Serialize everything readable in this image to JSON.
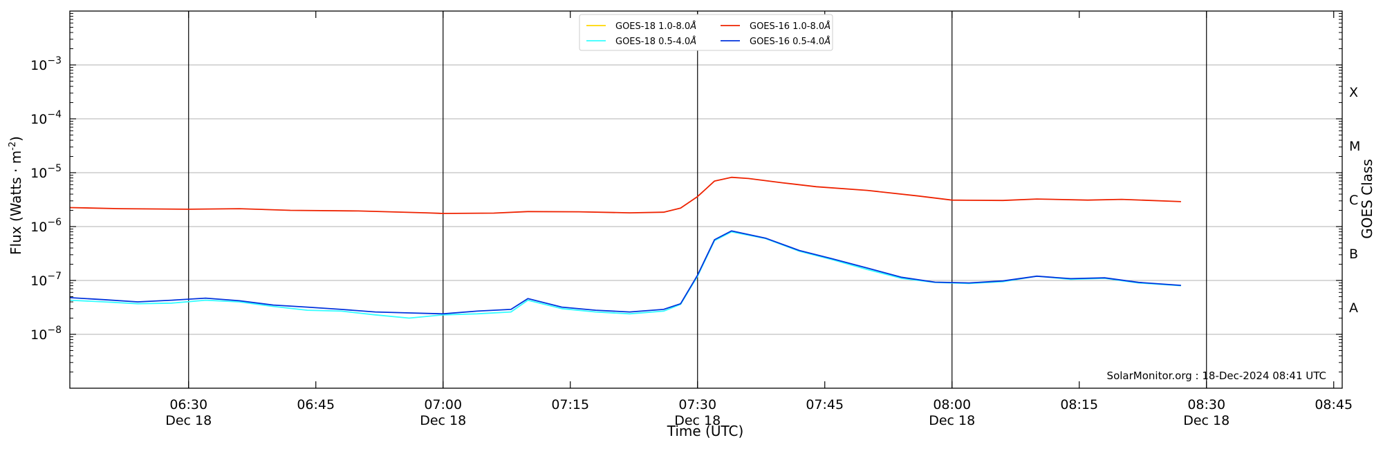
{
  "chart_data": {
    "type": "line",
    "title": "",
    "xlabel": "Time (UTC)",
    "ylabel": "Flux (Watts · m",
    "ylabel_sup": "-2",
    "ylabel_close": ")",
    "y2label": "GOES Class",
    "yscale": "log",
    "ylim": [
      1e-09,
      0.01
    ],
    "xlim": [
      "06:16",
      "08:46"
    ],
    "grid": "horizontal",
    "legend_position": "top-center",
    "y_ticks": [
      {
        "base": "10",
        "exp": "−8",
        "value": 1e-08
      },
      {
        "base": "10",
        "exp": "−7",
        "value": 1e-07
      },
      {
        "base": "10",
        "exp": "−6",
        "value": 1e-06
      },
      {
        "base": "10",
        "exp": "−5",
        "value": 1e-05
      },
      {
        "base": "10",
        "exp": "−4",
        "value": 0.0001
      },
      {
        "base": "10",
        "exp": "−3",
        "value": 0.001
      }
    ],
    "x_ticks": [
      {
        "time": "06:30",
        "label": "06:30",
        "date": "Dec 18"
      },
      {
        "time": "06:45",
        "label": "06:45",
        "date": ""
      },
      {
        "time": "07:00",
        "label": "07:00",
        "date": "Dec 18"
      },
      {
        "time": "07:15",
        "label": "07:15",
        "date": ""
      },
      {
        "time": "07:30",
        "label": "07:30",
        "date": "Dec 18"
      },
      {
        "time": "07:45",
        "label": "07:45",
        "date": ""
      },
      {
        "time": "08:00",
        "label": "08:00",
        "date": "Dec 18"
      },
      {
        "time": "08:15",
        "label": "08:15",
        "date": ""
      },
      {
        "time": "08:30",
        "label": "08:30",
        "date": "Dec 18"
      },
      {
        "time": "08:45",
        "label": "08:45",
        "date": ""
      }
    ],
    "vertical_lines": [
      "06:30",
      "07:00",
      "07:30",
      "08:00",
      "08:30"
    ],
    "goes_classes": [
      {
        "label": "A",
        "value": 3.16e-08
      },
      {
        "label": "B",
        "value": 3.16e-07
      },
      {
        "label": "C",
        "value": 3.16e-06
      },
      {
        "label": "M",
        "value": 3.16e-05
      },
      {
        "label": "X",
        "value": 0.000316
      }
    ],
    "series": [
      {
        "name": "GOES-18 1.0-8.0",
        "name_suffix": "Å",
        "color": "#ffd700",
        "data": []
      },
      {
        "name": "GOES-18 0.5-4.0",
        "name_suffix": "Å",
        "color": "#33ffff",
        "data": [
          [
            "06:16",
            4.3e-08
          ],
          [
            "06:20",
            4e-08
          ],
          [
            "06:24",
            3.7e-08
          ],
          [
            "06:28",
            3.8e-08
          ],
          [
            "06:32",
            4.3e-08
          ],
          [
            "06:36",
            4e-08
          ],
          [
            "06:40",
            3.3e-08
          ],
          [
            "06:44",
            2.8e-08
          ],
          [
            "06:48",
            2.7e-08
          ],
          [
            "06:52",
            2.3e-08
          ],
          [
            "06:56",
            2e-08
          ],
          [
            "07:00",
            2.3e-08
          ],
          [
            "07:04",
            2.4e-08
          ],
          [
            "07:08",
            2.6e-08
          ],
          [
            "07:10",
            4.3e-08
          ],
          [
            "07:14",
            3e-08
          ],
          [
            "07:18",
            2.6e-08
          ],
          [
            "07:22",
            2.4e-08
          ],
          [
            "07:26",
            2.7e-08
          ],
          [
            "07:28",
            3.6e-08
          ],
          [
            "07:30",
            1.2e-07
          ],
          [
            "07:32",
            5.5e-07
          ],
          [
            "07:34",
            8e-07
          ],
          [
            "07:38",
            6e-07
          ],
          [
            "07:42",
            3.5e-07
          ],
          [
            "07:46",
            2.4e-07
          ],
          [
            "07:50",
            1.6e-07
          ],
          [
            "07:54",
            1.1e-07
          ],
          [
            "07:58",
            9.2e-08
          ],
          [
            "08:02",
            8.8e-08
          ],
          [
            "08:06",
            9.5e-08
          ],
          [
            "08:10",
            1.2e-07
          ],
          [
            "08:14",
            1.05e-07
          ],
          [
            "08:18",
            1.1e-07
          ],
          [
            "08:22",
            9e-08
          ],
          [
            "08:27",
            8e-08
          ]
        ]
      },
      {
        "name": "GOES-16 1.0-8.0",
        "name_suffix": "Å",
        "color": "#ee2200",
        "data": [
          [
            "06:16",
            2.25e-06
          ],
          [
            "06:22",
            2.15e-06
          ],
          [
            "06:30",
            2.1e-06
          ],
          [
            "06:36",
            2.15e-06
          ],
          [
            "06:42",
            2e-06
          ],
          [
            "06:50",
            1.95e-06
          ],
          [
            "06:58",
            1.8e-06
          ],
          [
            "07:00",
            1.75e-06
          ],
          [
            "07:06",
            1.78e-06
          ],
          [
            "07:10",
            1.9e-06
          ],
          [
            "07:16",
            1.88e-06
          ],
          [
            "07:22",
            1.8e-06
          ],
          [
            "07:26",
            1.85e-06
          ],
          [
            "07:28",
            2.2e-06
          ],
          [
            "07:30",
            3.6e-06
          ],
          [
            "07:32",
            7e-06
          ],
          [
            "07:34",
            8.2e-06
          ],
          [
            "07:36",
            7.8e-06
          ],
          [
            "07:40",
            6.5e-06
          ],
          [
            "07:44",
            5.5e-06
          ],
          [
            "07:50",
            4.7e-06
          ],
          [
            "07:56",
            3.7e-06
          ],
          [
            "08:00",
            3.1e-06
          ],
          [
            "08:06",
            3.05e-06
          ],
          [
            "08:10",
            3.25e-06
          ],
          [
            "08:16",
            3.1e-06
          ],
          [
            "08:20",
            3.2e-06
          ],
          [
            "08:27",
            2.9e-06
          ]
        ]
      },
      {
        "name": "GOES-16 0.5-4.0",
        "name_suffix": "Å",
        "color": "#0033dd",
        "data": [
          [
            "06:16",
            4.8e-08
          ],
          [
            "06:20",
            4.4e-08
          ],
          [
            "06:24",
            4e-08
          ],
          [
            "06:28",
            4.3e-08
          ],
          [
            "06:32",
            4.7e-08
          ],
          [
            "06:36",
            4.2e-08
          ],
          [
            "06:40",
            3.5e-08
          ],
          [
            "06:44",
            3.2e-08
          ],
          [
            "06:48",
            2.9e-08
          ],
          [
            "06:52",
            2.6e-08
          ],
          [
            "06:56",
            2.5e-08
          ],
          [
            "07:00",
            2.4e-08
          ],
          [
            "07:04",
            2.7e-08
          ],
          [
            "07:08",
            2.9e-08
          ],
          [
            "07:10",
            4.6e-08
          ],
          [
            "07:14",
            3.2e-08
          ],
          [
            "07:18",
            2.8e-08
          ],
          [
            "07:22",
            2.6e-08
          ],
          [
            "07:26",
            2.9e-08
          ],
          [
            "07:28",
            3.7e-08
          ],
          [
            "07:30",
            1.25e-07
          ],
          [
            "07:32",
            5.7e-07
          ],
          [
            "07:34",
            8.3e-07
          ],
          [
            "07:38",
            6.1e-07
          ],
          [
            "07:42",
            3.6e-07
          ],
          [
            "07:46",
            2.5e-07
          ],
          [
            "07:50",
            1.7e-07
          ],
          [
            "07:54",
            1.15e-07
          ],
          [
            "07:58",
            9.3e-08
          ],
          [
            "08:02",
            9e-08
          ],
          [
            "08:06",
            9.8e-08
          ],
          [
            "08:10",
            1.2e-07
          ],
          [
            "08:14",
            1.08e-07
          ],
          [
            "08:18",
            1.12e-07
          ],
          [
            "08:22",
            9.2e-08
          ],
          [
            "08:27",
            8.1e-08
          ]
        ]
      }
    ],
    "legend_order": [
      0,
      1,
      2,
      3
    ],
    "annotation": "SolarMonitor.org : 18-Dec-2024 08:41 UTC"
  }
}
